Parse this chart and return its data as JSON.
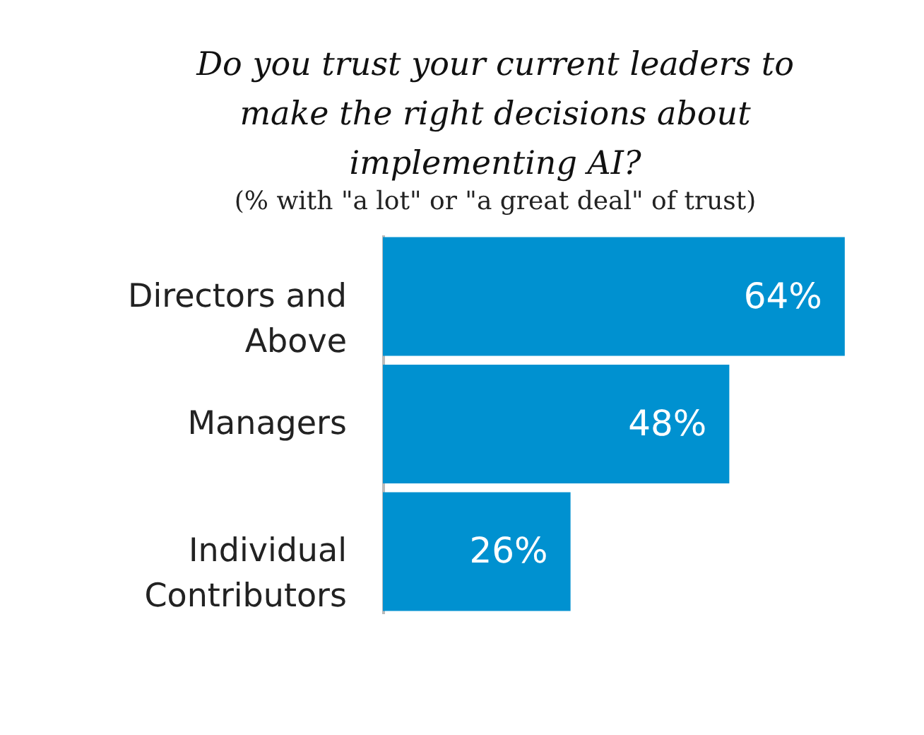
{
  "chart_data": {
    "type": "bar",
    "orientation": "horizontal",
    "title": "Do you trust your current leaders to make the right decisions about implementing AI?",
    "subtitle": "(% with \"a lot\" or \"a great deal\" of trust)",
    "categories": [
      "Directors and Above",
      "Managers",
      "Individual Contributors"
    ],
    "values": [
      64,
      48,
      26
    ],
    "value_labels": [
      "64%",
      "48%",
      "26%"
    ],
    "color": "#0091d0",
    "tick_labels": "y"
  }
}
